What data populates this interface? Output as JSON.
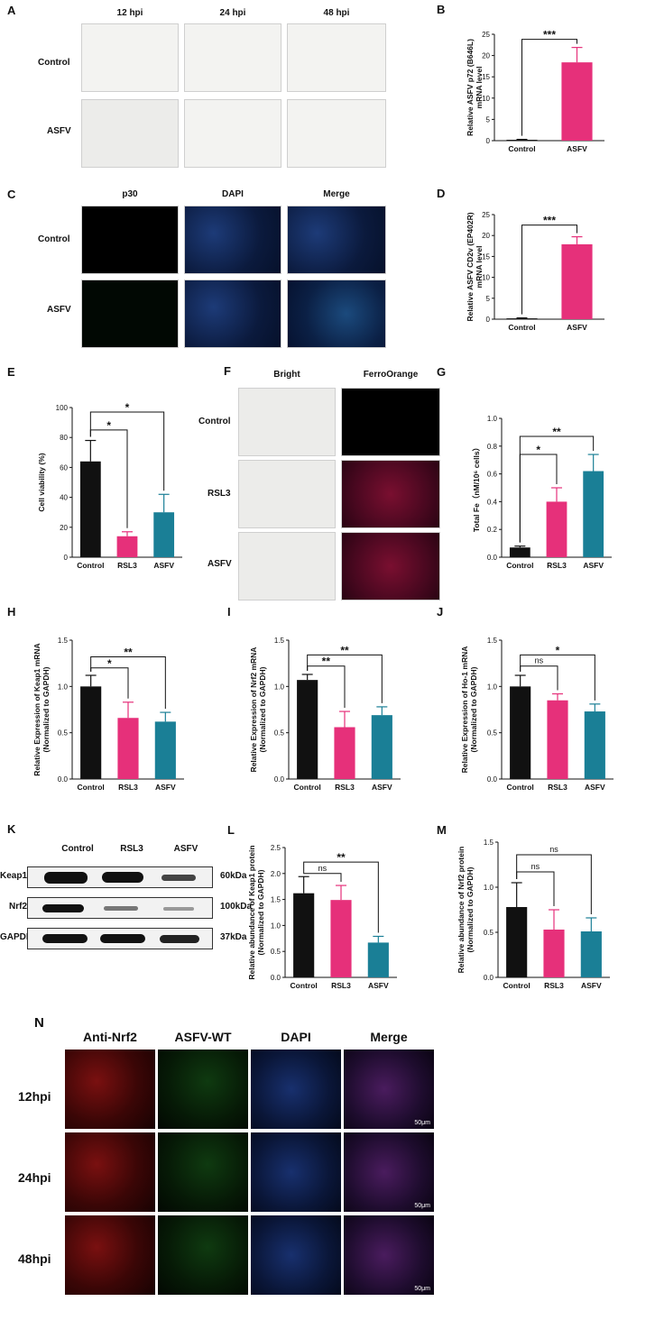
{
  "panels": {
    "A": {
      "letter": "A",
      "columns": [
        "12 hpi",
        "24 hpi",
        "48 hpi"
      ],
      "rows": [
        "Control",
        "ASFV"
      ]
    },
    "C": {
      "letter": "C",
      "columns": [
        "p30",
        "DAPI",
        "Merge"
      ],
      "rows": [
        "Control",
        "ASFV"
      ]
    },
    "F": {
      "letter": "F",
      "columns": [
        "Bright",
        "FerroOrange"
      ],
      "rows": [
        "Control",
        "RSL3",
        "ASFV"
      ]
    },
    "K": {
      "letter": "K",
      "lanes": [
        "Control",
        "RSL3",
        "ASFV"
      ],
      "proteins": [
        "Keap1",
        "Nrf2",
        "GAPDH"
      ],
      "sizes": [
        "60kDa",
        "100kDa",
        "37kDa"
      ]
    },
    "N": {
      "letter": "N",
      "columns": [
        "Anti-Nrf2",
        "ASFV-WT",
        "DAPI",
        "Merge"
      ],
      "rows": [
        "12hpi",
        "24hpi",
        "48hpi"
      ],
      "scale_bar": "50μm"
    }
  },
  "chart_data": [
    {
      "id": "B",
      "type": "bar",
      "letter": "B",
      "ylabel": [
        "Relative ASFV p72 (B646L)",
        "mRNA level"
      ],
      "categories": [
        "Control",
        "ASFV"
      ],
      "values": [
        0.2,
        18.4
      ],
      "errors": [
        0.1,
        3.5
      ],
      "colors": [
        "#111111",
        "#e6307a"
      ],
      "ylim": [
        0,
        25
      ],
      "yticks": [
        0,
        5,
        10,
        15,
        20,
        25
      ],
      "sig": [
        {
          "from": 0,
          "to": 1,
          "label": "***",
          "y": 23.8
        }
      ]
    },
    {
      "id": "D",
      "type": "bar",
      "letter": "D",
      "ylabel": [
        "Relative ASFV CD2v (EP402R)",
        "mRNA level"
      ],
      "categories": [
        "Control",
        "ASFV"
      ],
      "values": [
        0.2,
        17.9
      ],
      "errors": [
        0.1,
        1.8
      ],
      "colors": [
        "#111111",
        "#e6307a"
      ],
      "ylim": [
        0,
        25
      ],
      "yticks": [
        0,
        5,
        10,
        15,
        20,
        25
      ],
      "sig": [
        {
          "from": 0,
          "to": 1,
          "label": "***",
          "y": 22.5
        }
      ]
    },
    {
      "id": "E",
      "type": "bar",
      "letter": "E",
      "ylabel": [
        "Cell viability (%)"
      ],
      "categories": [
        "Control",
        "RSL3",
        "ASFV"
      ],
      "values": [
        64,
        14,
        30
      ],
      "errors": [
        14,
        3,
        12
      ],
      "colors": [
        "#111111",
        "#e6307a",
        "#1a7f96"
      ],
      "ylim": [
        0,
        100
      ],
      "yticks": [
        0,
        20,
        40,
        60,
        80,
        100
      ],
      "sig": [
        {
          "from": 0,
          "to": 1,
          "label": "*",
          "y": 85
        },
        {
          "from": 0,
          "to": 2,
          "label": "*",
          "y": 97
        }
      ]
    },
    {
      "id": "G",
      "type": "bar",
      "letter": "G",
      "ylabel": [
        "Total Fe（nM/10⁶ cells）"
      ],
      "categories": [
        "Control",
        "RSL3",
        "ASFV"
      ],
      "values": [
        0.07,
        0.4,
        0.62
      ],
      "errors": [
        0.01,
        0.1,
        0.12
      ],
      "colors": [
        "#111111",
        "#e6307a",
        "#1a7f96"
      ],
      "ylim": [
        0,
        1.0
      ],
      "yticks": [
        0,
        0.2,
        0.4,
        0.6,
        0.8,
        1.0
      ],
      "tickfmt": 1,
      "sig": [
        {
          "from": 0,
          "to": 1,
          "label": "*",
          "y": 0.74
        },
        {
          "from": 0,
          "to": 2,
          "label": "**",
          "y": 0.87
        }
      ]
    },
    {
      "id": "H",
      "type": "bar",
      "letter": "H",
      "ylabel": [
        "Relative Expression of Keap1 mRNA",
        "(Normalized to GAPDH)"
      ],
      "categories": [
        "Control",
        "RSL3",
        "ASFV"
      ],
      "values": [
        1.0,
        0.66,
        0.62
      ],
      "errors": [
        0.12,
        0.17,
        0.1
      ],
      "colors": [
        "#111111",
        "#e6307a",
        "#1a7f96"
      ],
      "ylim": [
        0,
        1.5
      ],
      "yticks": [
        0.0,
        0.5,
        1.0,
        1.5
      ],
      "tickfmt": 1,
      "sig": [
        {
          "from": 0,
          "to": 1,
          "label": "*",
          "y": 1.2
        },
        {
          "from": 0,
          "to": 2,
          "label": "**",
          "y": 1.32
        }
      ]
    },
    {
      "id": "I",
      "type": "bar",
      "letter": "I",
      "ylabel": [
        "Relative Expression of Nrf2 mRNA",
        "(Normalized to GAPDH)"
      ],
      "categories": [
        "Control",
        "RSL3",
        "ASFV"
      ],
      "values": [
        1.07,
        0.56,
        0.69
      ],
      "errors": [
        0.06,
        0.17,
        0.09
      ],
      "colors": [
        "#111111",
        "#e6307a",
        "#1a7f96"
      ],
      "ylim": [
        0,
        1.5
      ],
      "yticks": [
        0.0,
        0.5,
        1.0,
        1.5
      ],
      "tickfmt": 1,
      "sig": [
        {
          "from": 0,
          "to": 1,
          "label": "**",
          "y": 1.22
        },
        {
          "from": 0,
          "to": 2,
          "label": "**",
          "y": 1.34
        }
      ]
    },
    {
      "id": "J",
      "type": "bar",
      "letter": "J",
      "ylabel": [
        "Relative Expression of Ho-1 mRNA",
        "(Normalized to GAPDH)"
      ],
      "categories": [
        "Control",
        "RSL3",
        "ASFV"
      ],
      "values": [
        1.0,
        0.85,
        0.73
      ],
      "errors": [
        0.12,
        0.07,
        0.08
      ],
      "colors": [
        "#111111",
        "#e6307a",
        "#1a7f96"
      ],
      "ylim": [
        0,
        1.5
      ],
      "yticks": [
        0.0,
        0.5,
        1.0,
        1.5
      ],
      "tickfmt": 1,
      "sig": [
        {
          "from": 0,
          "to": 1,
          "label": "ns",
          "y": 1.22
        },
        {
          "from": 0,
          "to": 2,
          "label": "*",
          "y": 1.34
        }
      ]
    },
    {
      "id": "L",
      "type": "bar",
      "letter": "L",
      "ylabel": [
        "Relative abundance of Keap1 protein",
        "(Normalized to GAPDH)"
      ],
      "categories": [
        "Control",
        "RSL3",
        "ASFV"
      ],
      "values": [
        1.62,
        1.49,
        0.67
      ],
      "errors": [
        0.32,
        0.28,
        0.12
      ],
      "colors": [
        "#111111",
        "#e6307a",
        "#1a7f96"
      ],
      "ylim": [
        0,
        2.5
      ],
      "yticks": [
        0.0,
        0.5,
        1.0,
        1.5,
        2.0,
        2.5
      ],
      "tickfmt": 1,
      "sig": [
        {
          "from": 0,
          "to": 1,
          "label": "ns",
          "y": 2.0
        },
        {
          "from": 0,
          "to": 2,
          "label": "**",
          "y": 2.22
        }
      ]
    },
    {
      "id": "M",
      "type": "bar",
      "letter": "M",
      "ylabel": [
        "Relative abundance of Nrf2 protein",
        "(Normalized to GAPDH)"
      ],
      "categories": [
        "Control",
        "RSL3",
        "ASFV"
      ],
      "values": [
        0.78,
        0.53,
        0.51
      ],
      "errors": [
        0.27,
        0.22,
        0.15
      ],
      "colors": [
        "#111111",
        "#e6307a",
        "#1a7f96"
      ],
      "ylim": [
        0,
        1.5
      ],
      "yticks": [
        0.0,
        0.5,
        1.0,
        1.5
      ],
      "tickfmt": 1,
      "sig": [
        {
          "from": 0,
          "to": 1,
          "label": "ns",
          "y": 1.17
        },
        {
          "from": 0,
          "to": 2,
          "label": "ns",
          "y": 1.36
        }
      ]
    }
  ]
}
